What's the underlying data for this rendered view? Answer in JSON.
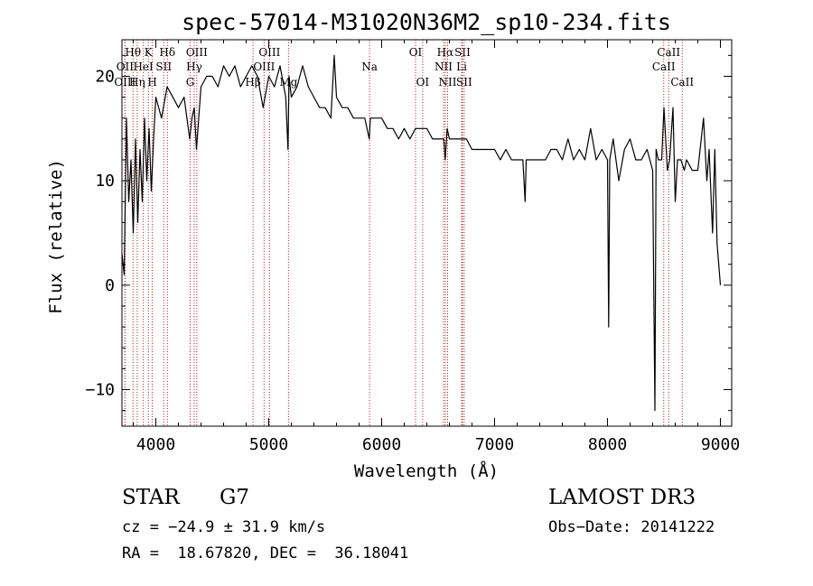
{
  "chart_data": {
    "type": "line",
    "title": "spec-57014-M31020N36M2_sp10-234.fits",
    "xlabel": "Wavelength (Å)",
    "ylabel": "Flux (relative)",
    "xlim": [
      3700,
      9100
    ],
    "ylim": [
      -13.5,
      23.5
    ],
    "x_ticks": [
      4000,
      5000,
      6000,
      7000,
      8000,
      9000
    ],
    "y_ticks": [
      -10,
      0,
      10,
      20
    ],
    "series": [
      {
        "name": "flux",
        "x": [
          3700,
          3720,
          3740,
          3760,
          3780,
          3800,
          3820,
          3840,
          3860,
          3880,
          3900,
          3920,
          3940,
          3960,
          3980,
          4000,
          4050,
          4100,
          4150,
          4200,
          4250,
          4300,
          4320,
          4340,
          4360,
          4400,
          4450,
          4500,
          4550,
          4600,
          4650,
          4700,
          4750,
          4800,
          4850,
          4900,
          4950,
          5000,
          5050,
          5100,
          5150,
          5170,
          5180,
          5200,
          5250,
          5300,
          5350,
          5400,
          5450,
          5500,
          5550,
          5580,
          5600,
          5650,
          5700,
          5750,
          5800,
          5850,
          5890,
          5900,
          5950,
          6000,
          6050,
          6100,
          6150,
          6200,
          6250,
          6300,
          6350,
          6400,
          6450,
          6500,
          6550,
          6563,
          6580,
          6600,
          6650,
          6700,
          6750,
          6800,
          6850,
          6900,
          6950,
          7000,
          7050,
          7100,
          7150,
          7200,
          7250,
          7270,
          7280,
          7300,
          7350,
          7400,
          7450,
          7500,
          7550,
          7600,
          7650,
          7700,
          7750,
          7800,
          7850,
          7900,
          7950,
          8000,
          8010,
          8020,
          8050,
          8100,
          8150,
          8200,
          8250,
          8300,
          8350,
          8400,
          8410,
          8420,
          8430,
          8450,
          8480,
          8500,
          8530,
          8550,
          8580,
          8600,
          8620,
          8650,
          8680,
          8700,
          8750,
          8800,
          8850,
          8880,
          8900,
          8930,
          8950,
          8970,
          9000
        ],
        "y": [
          3,
          1,
          16,
          8,
          12,
          5,
          14,
          6,
          13,
          8,
          16,
          10,
          15,
          9,
          14,
          18,
          16,
          19,
          18,
          17,
          18,
          14,
          16,
          17,
          13,
          19,
          20,
          20,
          19,
          21,
          20,
          21,
          19,
          20,
          21,
          20,
          17,
          20,
          19,
          21,
          18,
          13,
          20,
          18,
          19,
          21,
          19,
          18,
          17,
          17,
          16,
          22,
          18,
          17,
          17,
          16,
          16,
          16,
          14,
          16,
          16,
          16,
          15,
          15,
          14,
          15,
          14,
          15,
          15,
          15,
          14,
          14,
          14,
          12,
          15,
          14,
          14,
          14,
          14,
          13,
          13,
          13,
          13,
          13,
          12,
          13,
          12,
          12,
          12,
          8,
          12,
          12,
          12,
          12,
          12,
          13,
          13,
          12,
          14,
          12,
          13,
          12,
          15,
          12,
          13,
          12,
          -4,
          12,
          14,
          10,
          13,
          14,
          12,
          12,
          13,
          11,
          -1,
          -12,
          13,
          12,
          12,
          17,
          11,
          12,
          17,
          8,
          12,
          12,
          11,
          12,
          11,
          11,
          16,
          10,
          13,
          5,
          13,
          4,
          0
        ]
      }
    ],
    "spectral_lines": [
      {
        "label": "Hθ",
        "wavelength": 3798,
        "row": 1
      },
      {
        "label": "OII",
        "wavelength": 3727,
        "row": 2
      },
      {
        "label": "OIII",
        "wavelength": 3727,
        "row": 3
      },
      {
        "label": "K",
        "wavelength": 3934,
        "row": 1
      },
      {
        "label": "HeI",
        "wavelength": 3889,
        "row": 2
      },
      {
        "label": "Hη",
        "wavelength": 3835,
        "row": 3
      },
      {
        "label": "SII",
        "wavelength": 4070,
        "row": 2
      },
      {
        "label": "H",
        "wavelength": 3969,
        "row": 3
      },
      {
        "label": "Hδ",
        "wavelength": 4102,
        "row": 1
      },
      {
        "label": "OIII",
        "wavelength": 4363,
        "row": 1
      },
      {
        "label": "Hγ",
        "wavelength": 4340,
        "row": 2
      },
      {
        "label": "G",
        "wavelength": 4304,
        "row": 3
      },
      {
        "label": "OIII",
        "wavelength": 5007,
        "row": 1
      },
      {
        "label": "OIII",
        "wavelength": 4959,
        "row": 2
      },
      {
        "label": "Hβ",
        "wavelength": 4861,
        "row": 3
      },
      {
        "label": "Mg",
        "wavelength": 5175,
        "row": 3
      },
      {
        "label": "Na",
        "wavelength": 5893,
        "row": 2
      },
      {
        "label": "OI",
        "wavelength": 6300,
        "row": 1
      },
      {
        "label": "OI",
        "wavelength": 6363,
        "row": 3
      },
      {
        "label": "Hα",
        "wavelength": 6563,
        "row": 1
      },
      {
        "label": "SII",
        "wavelength": 6716,
        "row": 1
      },
      {
        "label": "NII",
        "wavelength": 6548,
        "row": 2
      },
      {
        "label": "Li",
        "wavelength": 6708,
        "row": 2
      },
      {
        "label": "NII",
        "wavelength": 6584,
        "row": 3
      },
      {
        "label": "SII",
        "wavelength": 6731,
        "row": 3
      },
      {
        "label": "CaII",
        "wavelength": 8542,
        "row": 1
      },
      {
        "label": "CaII",
        "wavelength": 8498,
        "row": 2
      },
      {
        "label": "CaII",
        "wavelength": 8662,
        "row": 3
      }
    ]
  },
  "info": {
    "class": "STAR",
    "subclass": "G7",
    "survey": "LAMOST DR3",
    "cz": "cz = −24.9 ± 31.9 km/s",
    "obs_date": "Obs−Date: 20141222",
    "coords": "RA =  18.67820, DEC =  36.18041"
  }
}
